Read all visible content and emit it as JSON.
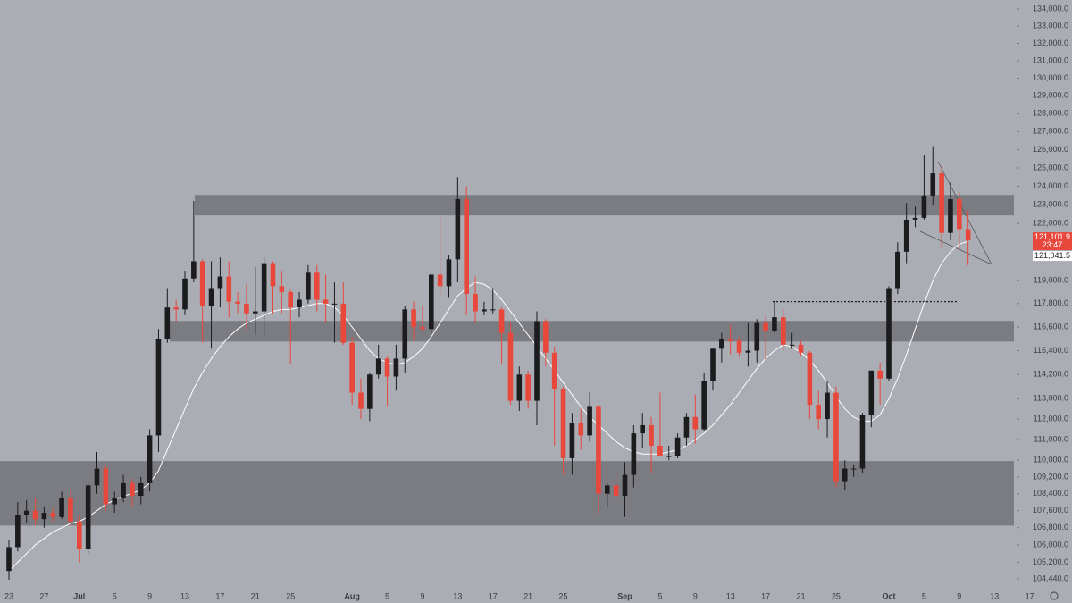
{
  "chart_data": {
    "type": "candlestick",
    "log_scale": true,
    "up_color": "#1c1c1f",
    "down_color": "#e8473b",
    "ma_color": "#ffffff",
    "zone_color": "#6b6c72",
    "level": 117900,
    "ylim": [
      103950,
      134525
    ],
    "yticks": [
      {
        "value": 134000,
        "label": "134,000.0"
      },
      {
        "value": 133000,
        "label": "133,000.0"
      },
      {
        "value": 132000,
        "label": "132,000.0"
      },
      {
        "value": 131000,
        "label": "131,000.0"
      },
      {
        "value": 130000,
        "label": "130,000.0"
      },
      {
        "value": 129000,
        "label": "129,000.0"
      },
      {
        "value": 128000,
        "label": "128,000.0"
      },
      {
        "value": 127000,
        "label": "127,000.0"
      },
      {
        "value": 126000,
        "label": "126,000.0"
      },
      {
        "value": 125000,
        "label": "125,000.0"
      },
      {
        "value": 124000,
        "label": "124,000.0"
      },
      {
        "value": 123000,
        "label": "123,000.0"
      },
      {
        "value": 122000,
        "label": "122,000.0"
      },
      {
        "value": 119000,
        "label": "119,000.0"
      },
      {
        "value": 117800,
        "label": "117,800.0"
      },
      {
        "value": 116600,
        "label": "116,600.0"
      },
      {
        "value": 115400,
        "label": "115,400.0"
      },
      {
        "value": 114200,
        "label": "114,200.0"
      },
      {
        "value": 113000,
        "label": "113,000.0"
      },
      {
        "value": 112000,
        "label": "112,000.0"
      },
      {
        "value": 111000,
        "label": "111,000.0"
      },
      {
        "value": 110000,
        "label": "110,000.0"
      },
      {
        "value": 109200,
        "label": "109,200.0"
      },
      {
        "value": 108400,
        "label": "108,400.0"
      },
      {
        "value": 107600,
        "label": "107,600.0"
      },
      {
        "value": 106800,
        "label": "106,800.0"
      },
      {
        "value": 106000,
        "label": "106,000.0"
      },
      {
        "value": 105200,
        "label": "105,200.0"
      },
      {
        "value": 104440,
        "label": "104,440.0"
      }
    ],
    "last_price": {
      "value": 121101.9,
      "label": "121,101.9"
    },
    "countdown": "23:47",
    "ma_price": {
      "value": 121041.5,
      "label": "121,041.5"
    },
    "zones": [
      {
        "low": 122430,
        "high": 123530
      },
      {
        "low": 115860,
        "high": 116910
      },
      {
        "low": 106900,
        "high": 109960
      }
    ],
    "categories": [
      "23",
      null,
      null,
      null,
      "27",
      null,
      null,
      null,
      "Jul",
      null,
      null,
      null,
      "5",
      null,
      null,
      null,
      "9",
      null,
      null,
      null,
      "13",
      null,
      null,
      null,
      "17",
      null,
      null,
      null,
      "21",
      null,
      null,
      null,
      "25",
      null,
      null,
      null,
      null,
      null,
      null,
      "Aug",
      null,
      null,
      null,
      "5",
      null,
      null,
      null,
      "9",
      null,
      null,
      null,
      "13",
      null,
      null,
      null,
      "17",
      null,
      null,
      null,
      "21",
      null,
      null,
      null,
      "25",
      null,
      null,
      null,
      null,
      null,
      null,
      "Sep",
      null,
      null,
      null,
      "5",
      null,
      null,
      null,
      "9",
      null,
      null,
      null,
      "13",
      null,
      null,
      null,
      "17",
      null,
      null,
      null,
      "21",
      null,
      null,
      null,
      "25",
      null,
      null,
      null,
      null,
      null,
      "Oct",
      null,
      null,
      null,
      "5",
      null,
      null,
      null,
      "9",
      null,
      null,
      null,
      "13",
      null,
      null,
      null,
      "17"
    ],
    "values": [
      [
        104800,
        106200,
        104400,
        105900
      ],
      [
        105900,
        108000,
        105700,
        107400
      ],
      [
        107400,
        108100,
        107000,
        107600
      ],
      [
        107600,
        108200,
        106900,
        107200
      ],
      [
        107200,
        107800,
        106800,
        107500
      ],
      [
        107500,
        107700,
        107100,
        107300
      ],
      [
        107300,
        108500,
        107200,
        108200
      ],
      [
        108200,
        108600,
        106900,
        107100
      ],
      [
        107100,
        107400,
        105200,
        105800
      ],
      [
        105800,
        109000,
        105600,
        108800
      ],
      [
        108800,
        110400,
        108400,
        109600
      ],
      [
        109600,
        109800,
        107600,
        107900
      ],
      [
        107900,
        108500,
        107500,
        108200
      ],
      [
        108200,
        109300,
        108000,
        108900
      ],
      [
        108900,
        109100,
        107800,
        108300
      ],
      [
        108300,
        109200,
        107900,
        108900
      ],
      [
        108900,
        111500,
        108500,
        111200
      ],
      [
        111200,
        116500,
        110400,
        116000
      ],
      [
        116000,
        118600,
        115800,
        117600
      ],
      [
        117600,
        118000,
        116900,
        117500
      ],
      [
        117500,
        119500,
        117200,
        119100
      ],
      [
        119100,
        123200,
        118900,
        120000
      ],
      [
        120000,
        120100,
        115800,
        117700
      ],
      [
        117700,
        120000,
        115500,
        118600
      ],
      [
        118600,
        120200,
        117600,
        119200
      ],
      [
        119200,
        120000,
        117100,
        117900
      ],
      [
        117900,
        118400,
        117300,
        117800
      ],
      [
        117800,
        118800,
        116500,
        117300
      ],
      [
        117300,
        119700,
        116200,
        117400
      ],
      [
        117400,
        120200,
        116200,
        119900
      ],
      [
        119900,
        120000,
        117300,
        118700
      ],
      [
        118700,
        119500,
        117300,
        118400
      ],
      [
        118400,
        118500,
        114700,
        117600
      ],
      [
        117600,
        118400,
        117100,
        118000
      ],
      [
        118000,
        119800,
        117800,
        119400
      ],
      [
        119400,
        119800,
        117400,
        118000
      ],
      [
        118000,
        119300,
        116800,
        117800
      ],
      [
        117800,
        118900,
        115800,
        117800
      ],
      [
        117800,
        118900,
        115700,
        115800
      ],
      [
        115800,
        116100,
        112700,
        113300
      ],
      [
        113300,
        114000,
        112000,
        112500
      ],
      [
        112500,
        114300,
        111900,
        114200
      ],
      [
        114200,
        115700,
        114000,
        115000
      ],
      [
        115000,
        115100,
        112600,
        114100
      ],
      [
        114100,
        115700,
        113400,
        115000
      ],
      [
        115000,
        117700,
        114300,
        117500
      ],
      [
        117500,
        117900,
        115900,
        116600
      ],
      [
        116600,
        117700,
        116300,
        116500
      ],
      [
        116500,
        119300,
        116300,
        119300
      ],
      [
        119300,
        122300,
        118200,
        118700
      ],
      [
        118700,
        120300,
        118100,
        120100
      ],
      [
        120100,
        124500,
        118900,
        123300
      ],
      [
        123300,
        124000,
        117200,
        118300
      ],
      [
        118300,
        119200,
        116800,
        117400
      ],
      [
        117400,
        117900,
        117200,
        117500
      ],
      [
        117500,
        118600,
        117300,
        117500
      ],
      [
        117500,
        117600,
        114700,
        116300
      ],
      [
        116300,
        116800,
        112700,
        112900
      ],
      [
        112900,
        114600,
        112400,
        114200
      ],
      [
        114200,
        114400,
        112500,
        112900
      ],
      [
        112900,
        117400,
        111700,
        116900
      ],
      [
        116900,
        117000,
        114600,
        115300
      ],
      [
        115300,
        115600,
        110700,
        113500
      ],
      [
        113500,
        113600,
        109300,
        110100
      ],
      [
        110100,
        112300,
        109300,
        111800
      ],
      [
        111800,
        112500,
        110500,
        111200
      ],
      [
        111200,
        113300,
        110900,
        112600
      ],
      [
        112600,
        112700,
        107500,
        108400
      ],
      [
        108400,
        108900,
        107800,
        108800
      ],
      [
        108800,
        109400,
        108100,
        108300
      ],
      [
        108300,
        109900,
        107300,
        109300
      ],
      [
        109300,
        111700,
        108700,
        111300
      ],
      [
        111300,
        112300,
        110600,
        111700
      ],
      [
        111700,
        112100,
        109400,
        110700
      ],
      [
        110700,
        113300,
        110400,
        110200
      ],
      [
        110200,
        110700,
        110000,
        110200
      ],
      [
        110200,
        111300,
        110100,
        111100
      ],
      [
        111100,
        112300,
        110700,
        112100
      ],
      [
        112100,
        113200,
        110800,
        111500
      ],
      [
        111500,
        114300,
        111400,
        113900
      ],
      [
        113900,
        115500,
        113400,
        115500
      ],
      [
        115500,
        116300,
        114800,
        116000
      ],
      [
        116000,
        116700,
        115200,
        115900
      ],
      [
        115900,
        116100,
        115100,
        115300
      ],
      [
        115300,
        116800,
        114600,
        115400
      ],
      [
        115400,
        117000,
        114800,
        116800
      ],
      [
        116800,
        117200,
        114900,
        116400
      ],
      [
        116400,
        117900,
        116300,
        117100
      ],
      [
        117100,
        117500,
        115400,
        115700
      ],
      [
        115700,
        116300,
        115500,
        115700
      ],
      [
        115700,
        115900,
        115100,
        115300
      ],
      [
        115300,
        115400,
        112000,
        112700
      ],
      [
        112700,
        113400,
        111500,
        112000
      ],
      [
        112000,
        113900,
        111100,
        113300
      ],
      [
        113300,
        113600,
        108700,
        109000
      ],
      [
        109000,
        110000,
        108600,
        109600
      ],
      [
        109600,
        109800,
        109200,
        109600
      ],
      [
        109600,
        112300,
        109400,
        112200
      ],
      [
        112200,
        114400,
        111600,
        114400
      ],
      [
        114400,
        114800,
        112700,
        114000
      ],
      [
        114000,
        118700,
        113900,
        118600
      ],
      [
        118600,
        121000,
        118300,
        120500
      ],
      [
        120500,
        123100,
        119900,
        122200
      ],
      [
        122200,
        122900,
        121800,
        122300
      ],
      [
        122300,
        125700,
        122200,
        123500
      ],
      [
        123500,
        126200,
        123000,
        124700
      ],
      [
        124700,
        125100,
        120700,
        121500
      ],
      [
        121500,
        124200,
        121100,
        123300
      ],
      [
        123300,
        123700,
        120600,
        121700
      ],
      [
        121700,
        122700,
        119800,
        121101.9
      ],
      null,
      null,
      null,
      null,
      null,
      null,
      null
    ],
    "ma_values": [
      104800,
      105200,
      105600,
      106000,
      106300,
      106600,
      106800,
      107000,
      107100,
      107300,
      107600,
      107900,
      108100,
      108300,
      108400,
      108600,
      108900,
      109500,
      110500,
      111500,
      112500,
      113500,
      114300,
      115000,
      115600,
      116100,
      116500,
      116800,
      117000,
      117200,
      117400,
      117500,
      117500,
      117600,
      117700,
      117800,
      117800,
      117600,
      117200,
      116600,
      116000,
      115400,
      115000,
      114800,
      114700,
      114800,
      115100,
      115500,
      116100,
      116800,
      117500,
      118200,
      118600,
      118900,
      118800,
      118500,
      118000,
      117400,
      116800,
      116200,
      115600,
      115000,
      114400,
      113800,
      113200,
      112600,
      112100,
      111700,
      111300,
      110900,
      110600,
      110400,
      110300,
      110300,
      110300,
      110400,
      110500,
      110700,
      111000,
      111300,
      111700,
      112200,
      112700,
      113300,
      113900,
      114500,
      115000,
      115400,
      115700,
      115600,
      115300,
      114900,
      114400,
      113800,
      113100,
      112500,
      112100,
      111900,
      111900,
      112200,
      113000,
      114000,
      115200,
      116500,
      117800,
      119000,
      119900,
      120500,
      120900,
      121041.5,
      null,
      null,
      null,
      null,
      null,
      null,
      null
    ]
  }
}
